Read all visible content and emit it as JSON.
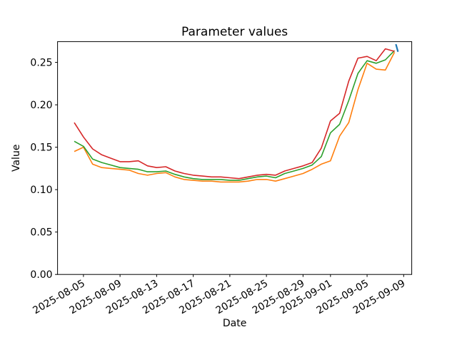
{
  "figure": {
    "background": "#ffffff"
  },
  "chart_data": {
    "type": "line",
    "title": "Parameter values",
    "xlabel": "Date",
    "ylabel": "Value",
    "grid": false,
    "legend": "none",
    "ylim": [
      0.0,
      0.2745
    ],
    "xlim_day_index": [
      -1.83,
      36.88
    ],
    "yticks": [
      0.0,
      0.05,
      0.1,
      0.15,
      0.2,
      0.25
    ],
    "ytick_format_decimals": 2,
    "xticks": {
      "rotation_deg": 30,
      "labels": [
        "2025-08-05",
        "2025-08-09",
        "2025-08-13",
        "2025-08-17",
        "2025-08-21",
        "2025-08-25",
        "2025-08-29",
        "2025-09-01",
        "2025-09-05",
        "2025-09-09"
      ],
      "day_index": [
        1,
        5,
        9,
        13,
        17,
        21,
        25,
        28,
        32,
        36
      ]
    },
    "x_dates": [
      "2025-08-04",
      "2025-08-05",
      "2025-08-06",
      "2025-08-07",
      "2025-08-08",
      "2025-08-09",
      "2025-08-10",
      "2025-08-11",
      "2025-08-12",
      "2025-08-13",
      "2025-08-14",
      "2025-08-15",
      "2025-08-16",
      "2025-08-17",
      "2025-08-18",
      "2025-08-19",
      "2025-08-20",
      "2025-08-21",
      "2025-08-22",
      "2025-08-23",
      "2025-08-24",
      "2025-08-25",
      "2025-08-26",
      "2025-08-27",
      "2025-08-28",
      "2025-08-29",
      "2025-08-30",
      "2025-08-31",
      "2025-09-01",
      "2025-09-02",
      "2025-09-03",
      "2025-09-04",
      "2025-09-05",
      "2025-09-06",
      "2025-09-07",
      "2025-09-08"
    ],
    "series": [
      {
        "name": "red",
        "color": "#d62728",
        "line_width": 1.6,
        "values": [
          0.179,
          0.162,
          0.148,
          0.141,
          0.137,
          0.133,
          0.133,
          0.134,
          0.128,
          0.126,
          0.127,
          0.122,
          0.119,
          0.117,
          0.116,
          0.115,
          0.115,
          0.114,
          0.113,
          0.115,
          0.117,
          0.118,
          0.117,
          0.122,
          0.125,
          0.128,
          0.132,
          0.149,
          0.181,
          0.19,
          0.228,
          0.255,
          0.257,
          0.252,
          0.266,
          0.263
        ]
      },
      {
        "name": "green",
        "color": "#2ca02c",
        "line_width": 1.6,
        "values": [
          0.157,
          0.151,
          0.136,
          0.132,
          0.129,
          0.126,
          0.125,
          0.124,
          0.121,
          0.121,
          0.122,
          0.118,
          0.115,
          0.113,
          0.112,
          0.112,
          0.112,
          0.111,
          0.111,
          0.113,
          0.115,
          0.116,
          0.114,
          0.119,
          0.122,
          0.125,
          0.129,
          0.139,
          0.167,
          0.177,
          0.205,
          0.237,
          0.252,
          0.249,
          0.253,
          0.264
        ]
      },
      {
        "name": "orange",
        "color": "#ff7f0e",
        "line_width": 1.6,
        "values": [
          0.145,
          0.15,
          0.13,
          0.126,
          0.125,
          0.124,
          0.123,
          0.119,
          0.117,
          0.119,
          0.12,
          0.115,
          0.112,
          0.111,
          0.11,
          0.11,
          0.109,
          0.109,
          0.109,
          0.11,
          0.112,
          0.112,
          0.11,
          0.113,
          0.116,
          0.119,
          0.124,
          0.13,
          0.134,
          0.163,
          0.179,
          0.218,
          0.249,
          0.242,
          0.241,
          0.262
        ]
      },
      {
        "name": "blue-end-dash",
        "color": "#1f77b4",
        "line_width": 2.2,
        "x_day_index": [
          35.15,
          35.38
        ],
        "values": [
          0.2715,
          0.2625
        ]
      }
    ]
  }
}
